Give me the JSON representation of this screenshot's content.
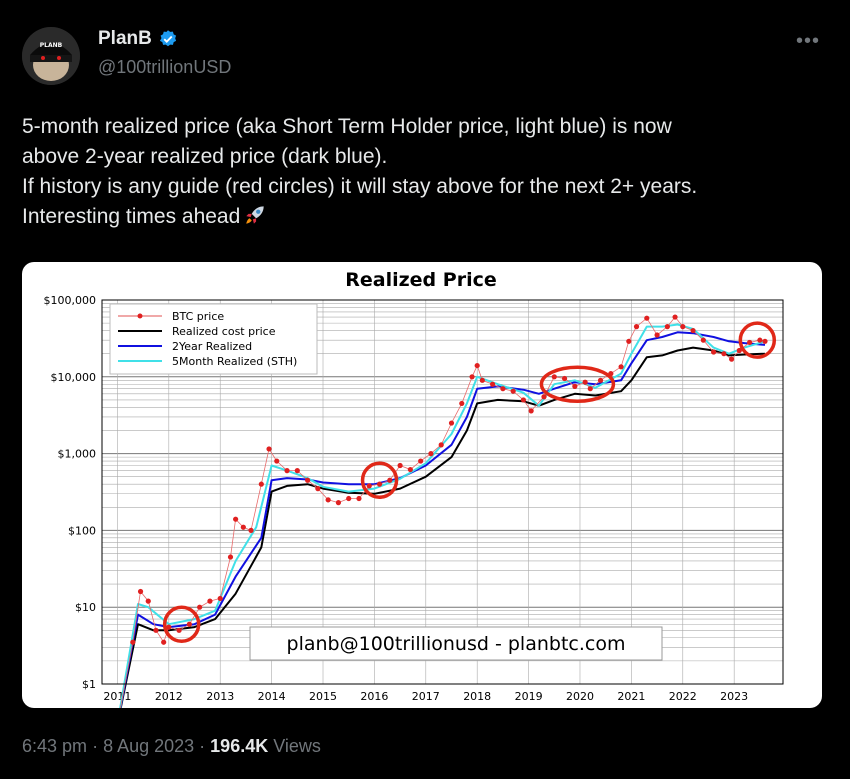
{
  "author": {
    "name": "PlanB",
    "handle": "@100trillionUSD",
    "avatar_text": "PLANB",
    "verified": true
  },
  "tweet": {
    "lines": [
      "5-month realized price (aka Short Term Holder price, light blue) is now",
      "above 2-year realized price (dark blue).",
      "If history is any guide (red circles) it will stay above for the next 2+ years.",
      "Interesting times ahead"
    ],
    "emoji": "rocket-icon"
  },
  "meta": {
    "time": "6:43 pm",
    "date": "8 Aug 2023",
    "views_count": "196.4K",
    "views_label": "Views"
  },
  "colors": {
    "btc_price": "#e02020",
    "realized": "#000000",
    "two_year": "#1010e0",
    "five_month": "#40e0e8",
    "circle": "#e02818"
  },
  "chart_data": {
    "type": "line",
    "title": "Realized Price",
    "y_scale": "log",
    "ylim": [
      1,
      100000
    ],
    "y_ticks": [
      "$1",
      "$10",
      "$100",
      "$1,000",
      "$10,000",
      "$100,000"
    ],
    "x_ticks": [
      "2011",
      "2012",
      "2013",
      "2014",
      "2015",
      "2016",
      "2017",
      "2018",
      "2019",
      "2020",
      "2021",
      "2022",
      "2023"
    ],
    "xlim": [
      2010.7,
      2023.95
    ],
    "grid": true,
    "legend_position": "top-left",
    "watermark": "planb@100trillionusd  -  planbtc.com",
    "series": [
      {
        "name": "BTC price",
        "style": "points",
        "x": [
          2011.0,
          2011.3,
          2011.45,
          2011.6,
          2011.75,
          2011.9,
          2012.0,
          2012.2,
          2012.4,
          2012.6,
          2012.8,
          2013.0,
          2013.2,
          2013.3,
          2013.45,
          2013.6,
          2013.8,
          2013.95,
          2014.1,
          2014.3,
          2014.5,
          2014.7,
          2014.9,
          2015.1,
          2015.3,
          2015.5,
          2015.7,
          2015.9,
          2016.1,
          2016.3,
          2016.5,
          2016.7,
          2016.9,
          2017.1,
          2017.3,
          2017.5,
          2017.7,
          2017.9,
          2018.0,
          2018.1,
          2018.3,
          2018.5,
          2018.7,
          2018.9,
          2019.05,
          2019.3,
          2019.5,
          2019.7,
          2019.9,
          2020.1,
          2020.2,
          2020.4,
          2020.6,
          2020.8,
          2020.95,
          2021.1,
          2021.3,
          2021.5,
          2021.7,
          2021.85,
          2022.0,
          2022.2,
          2022.4,
          2022.6,
          2022.8,
          2022.95,
          2023.1,
          2023.3,
          2023.5,
          2023.6
        ],
        "y": [
          0.3,
          3.5,
          16,
          12,
          5,
          3.5,
          5.5,
          5,
          6,
          10,
          12,
          13,
          45,
          140,
          110,
          100,
          400,
          1150,
          800,
          600,
          600,
          450,
          350,
          250,
          230,
          260,
          260,
          380,
          400,
          450,
          700,
          620,
          800,
          1000,
          1300,
          2500,
          4500,
          10000,
          14000,
          9000,
          8000,
          7000,
          6500,
          5000,
          3600,
          5500,
          10000,
          9500,
          7500,
          8500,
          7000,
          9000,
          11000,
          13500,
          29000,
          45000,
          58000,
          35000,
          45000,
          60000,
          45000,
          40000,
          30000,
          21000,
          20000,
          17000,
          22000,
          28000,
          30000,
          29000
        ]
      },
      {
        "name": "Realized cost price",
        "style": "line",
        "x": [
          2011.0,
          2011.4,
          2011.7,
          2012.0,
          2012.5,
          2012.9,
          2013.3,
          2013.8,
          2014.0,
          2014.3,
          2014.7,
          2015.0,
          2015.5,
          2016.0,
          2016.5,
          2017.0,
          2017.5,
          2017.8,
          2018.0,
          2018.4,
          2018.9,
          2019.2,
          2019.5,
          2019.9,
          2020.3,
          2020.8,
          2021.0,
          2021.3,
          2021.6,
          2021.9,
          2022.2,
          2022.6,
          2022.9,
          2023.2,
          2023.6
        ],
        "y": [
          0.3,
          6,
          5,
          5,
          5.5,
          7,
          15,
          60,
          320,
          380,
          400,
          350,
          310,
          300,
          350,
          500,
          900,
          2000,
          4500,
          5000,
          4800,
          4200,
          5000,
          6000,
          5700,
          6500,
          9000,
          18000,
          19000,
          22000,
          24000,
          22000,
          19000,
          19500,
          20000
        ]
      },
      {
        "name": "2Year Realized",
        "style": "line",
        "x": [
          2011.0,
          2011.4,
          2011.7,
          2012.0,
          2012.5,
          2012.9,
          2013.3,
          2013.8,
          2014.0,
          2014.3,
          2014.7,
          2015.0,
          2015.5,
          2016.0,
          2016.5,
          2017.0,
          2017.5,
          2017.8,
          2018.0,
          2018.4,
          2018.9,
          2019.2,
          2019.5,
          2019.9,
          2020.3,
          2020.8,
          2021.0,
          2021.3,
          2021.6,
          2021.9,
          2022.2,
          2022.6,
          2022.9,
          2023.2,
          2023.6
        ],
        "y": [
          0.3,
          8,
          6,
          5.5,
          6,
          8,
          25,
          80,
          450,
          480,
          460,
          420,
          400,
          400,
          480,
          700,
          1300,
          3000,
          7000,
          7500,
          6800,
          6000,
          7000,
          8500,
          8000,
          9000,
          15000,
          30000,
          33000,
          38000,
          37000,
          33000,
          29000,
          27500,
          26000
        ]
      },
      {
        "name": "5Month Realized (STH)",
        "style": "line",
        "x": [
          2011.0,
          2011.4,
          2011.6,
          2012.0,
          2012.5,
          2012.9,
          2013.3,
          2013.7,
          2014.0,
          2014.3,
          2014.7,
          2015.0,
          2015.5,
          2016.0,
          2016.5,
          2017.0,
          2017.5,
          2017.8,
          2018.0,
          2018.4,
          2018.9,
          2019.2,
          2019.5,
          2019.9,
          2020.3,
          2020.8,
          2021.0,
          2021.3,
          2021.6,
          2021.9,
          2022.2,
          2022.6,
          2022.9,
          2023.2,
          2023.6
        ],
        "y": [
          0.3,
          11,
          10,
          6,
          7,
          9,
          40,
          110,
          700,
          600,
          480,
          370,
          320,
          350,
          470,
          750,
          1800,
          4500,
          10000,
          8000,
          6200,
          4200,
          8000,
          9000,
          7200,
          11000,
          20000,
          45000,
          45000,
          48000,
          42000,
          24000,
          20000,
          24000,
          29000
        ]
      }
    ],
    "annotations": [
      {
        "type": "circle",
        "x": 2012.25,
        "y": 6
      },
      {
        "type": "circle",
        "x": 2016.1,
        "y": 450
      },
      {
        "type": "circle",
        "x": 2019.95,
        "y": 8000
      },
      {
        "type": "circle",
        "x": 2023.45,
        "y": 30000
      }
    ]
  }
}
